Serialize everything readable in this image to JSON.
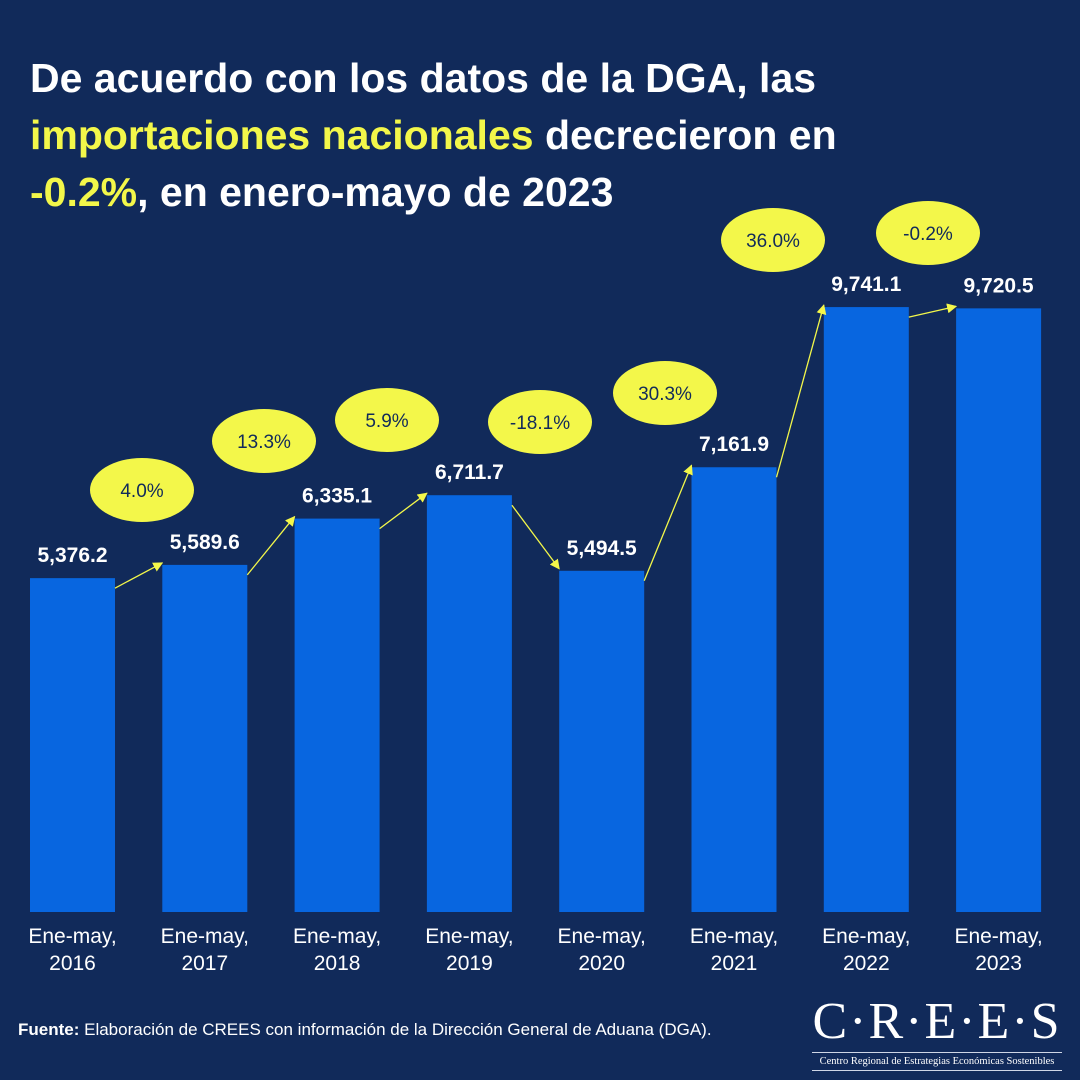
{
  "title": {
    "part1": "De acuerdo con los datos de la DGA, las",
    "highlight1": "importaciones nacionales",
    "part2": " decrecieron en",
    "highlight2": "-0.2%",
    "part3": ", en enero-mayo de 2023"
  },
  "colors": {
    "background": "#112a5a",
    "bar": "#0866e0",
    "accent": "#f3f74a",
    "text": "#ffffff"
  },
  "chart_data": {
    "type": "bar",
    "categories": [
      [
        "Ene-may,",
        "2016"
      ],
      [
        "Ene-may,",
        "2017"
      ],
      [
        "Ene-may,",
        "2018"
      ],
      [
        "Ene-may,",
        "2019"
      ],
      [
        "Ene-may,",
        "2020"
      ],
      [
        "Ene-may,",
        "2021"
      ],
      [
        "Ene-may,",
        "2022"
      ],
      [
        "Ene-may,",
        "2023"
      ]
    ],
    "values": [
      5376.2,
      5589.6,
      6335.1,
      6711.7,
      5494.5,
      7161.9,
      9741.1,
      9720.5
    ],
    "value_labels": [
      "5,376.2",
      "5,589.6",
      "6,335.1",
      "6,711.7",
      "5,494.5",
      "7,161.9",
      "9,741.1",
      "9,720.5"
    ],
    "growth_labels": [
      "4.0%",
      "13.3%",
      "5.9%",
      "-18.1%",
      "30.3%",
      "36.0%",
      "-0.2%"
    ],
    "ylim": [
      0,
      14686
    ],
    "grid": false,
    "legend": "none"
  },
  "source": {
    "label": "Fuente:",
    "text": " Elaboración de CREES con información de la Dirección General de Aduana (DGA)."
  },
  "logo": {
    "name": "C·R·E·E·S",
    "subtitle": "Centro Regional de Estrategias Económicas Sostenibles"
  }
}
